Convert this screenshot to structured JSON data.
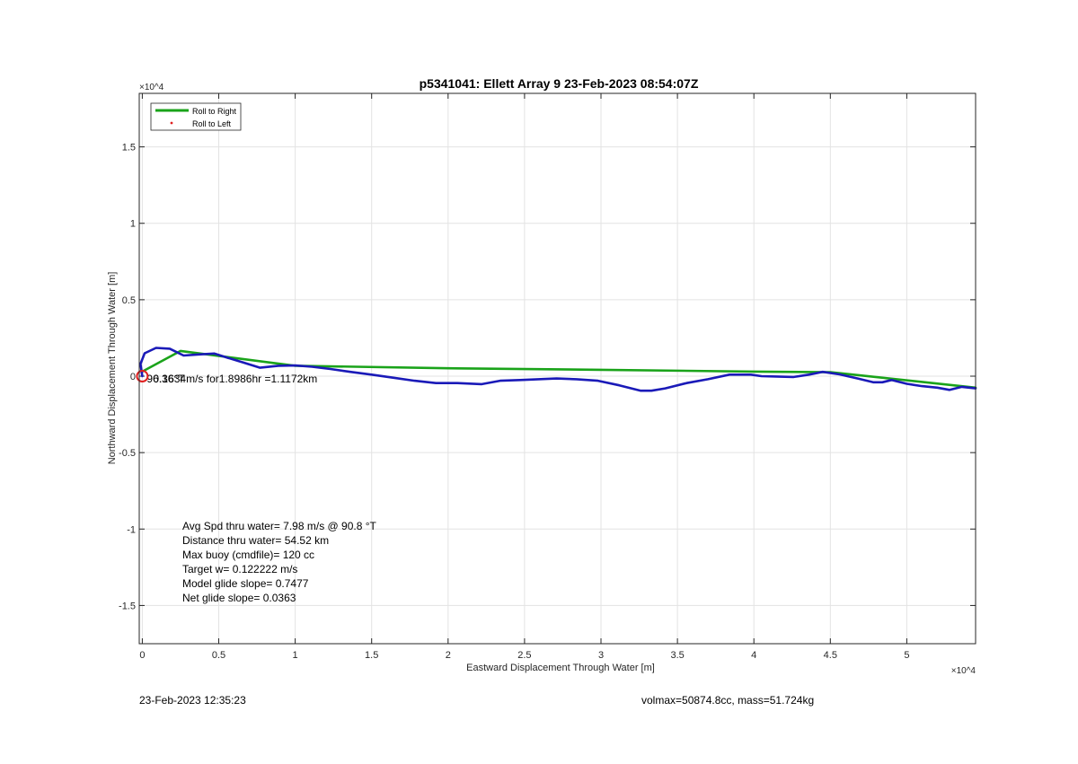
{
  "chart_data": {
    "type": "line",
    "title": "p5341041: Ellett Array 9 23-Feb-2023 08:54:07Z",
    "xlabel": "Eastward Displacement Through Water [m]",
    "ylabel": "Northward Displacement Through Water [m]",
    "xlim": [
      -200,
      54500
    ],
    "ylim": [
      -17500,
      18500
    ],
    "x_exponent_label": "×10^4",
    "y_exponent_label": "×10^4",
    "xticks": [
      0,
      5000,
      10000,
      15000,
      20000,
      25000,
      30000,
      35000,
      40000,
      45000,
      50000
    ],
    "xtick_labels": [
      "0",
      "0.5",
      "1",
      "1.5",
      "2",
      "2.5",
      "3",
      "3.5",
      "4",
      "4.5",
      "5"
    ],
    "yticks": [
      -15000,
      -10000,
      -5000,
      0,
      5000,
      10000,
      15000
    ],
    "ytick_labels": [
      "-1.5",
      "-1",
      "-0.5",
      "0",
      "0.5",
      "1",
      "1.5"
    ],
    "grid": true,
    "legend_position": "top-left",
    "legend": [
      "Roll to Right",
      "Roll to Left"
    ],
    "series": [
      {
        "name": "Roll to Right",
        "color": "#1aa31a",
        "style": "line",
        "x": [
          0,
          2500,
          10000,
          20000,
          30000,
          40000,
          45000,
          54500
        ],
        "y": [
          300,
          1650,
          680,
          520,
          420,
          300,
          260,
          -750
        ]
      },
      {
        "name": "Roll to Left",
        "color": "#e02020",
        "style": "dots",
        "x": [],
        "y": []
      },
      {
        "color": "#1a1ab8",
        "style": "line",
        "x": [
          0,
          -120,
          150,
          900,
          1800,
          2700,
          3700,
          4700,
          5600,
          6600,
          7700,
          8900,
          10000,
          11100,
          12300,
          13600,
          15000,
          16400,
          17800,
          19200,
          20600,
          22200,
          23400,
          24700,
          25900,
          27100,
          28400,
          29800,
          31200,
          32600,
          33300,
          34200,
          35600,
          37000,
          38400,
          39800,
          40500,
          41500,
          42600,
          43600,
          44500,
          45600,
          46800,
          47800,
          48400,
          49000,
          50000,
          51000,
          52000,
          52800,
          53600,
          54500
        ],
        "y": [
          0,
          800,
          1500,
          1850,
          1800,
          1350,
          1420,
          1480,
          1200,
          900,
          550,
          680,
          700,
          620,
          470,
          280,
          100,
          -100,
          -300,
          -450,
          -450,
          -520,
          -300,
          -250,
          -200,
          -150,
          -200,
          -300,
          -600,
          -950,
          -950,
          -800,
          -450,
          -200,
          100,
          100,
          0,
          -20,
          -50,
          100,
          280,
          120,
          -150,
          -400,
          -400,
          -250,
          -500,
          -650,
          -750,
          -900,
          -700,
          -800
        ]
      }
    ],
    "annotations": {
      "stats": [
        "Avg Spd thru water=  7.98 m/s @  90.8 °T",
        "Distance thru water= 54.52 km",
        "Max buoy (cmdfile)= 120 cc",
        "Target w= 0.122222 m/s",
        "Model glide slope= 0.7477",
        "Net glide slope= 0.0363"
      ],
      "origin_overlap_text": "0.1634m/s for1.8986hr =1.1172km",
      "origin_underlay_text": "96.36°T"
    }
  },
  "footer": {
    "left": "23-Feb-2023 12:35:23",
    "right": "volmax=50874.8cc, mass=51.724kg"
  }
}
